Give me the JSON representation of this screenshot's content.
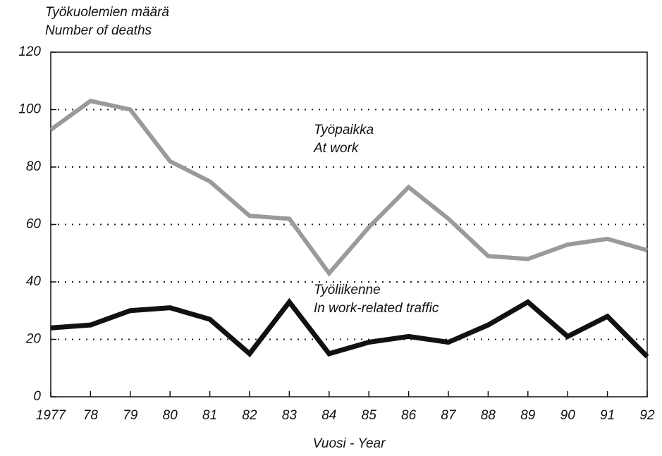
{
  "chart_data": {
    "type": "line",
    "ylabel": [
      "Työkuolemien määrä",
      "Number of deaths"
    ],
    "xlabel": "Vuosi - Year",
    "categories": [
      "1977",
      "78",
      "79",
      "80",
      "81",
      "82",
      "83",
      "84",
      "85",
      "86",
      "87",
      "88",
      "89",
      "90",
      "91",
      "92"
    ],
    "series": [
      {
        "name": "Työpaikka",
        "name_en": "At work",
        "color": "#9a9a9a",
        "values": [
          93,
          103,
          100,
          82,
          75,
          63,
          62,
          43,
          59,
          73,
          62,
          49,
          48,
          53,
          55,
          51
        ]
      },
      {
        "name": "Työliikenne",
        "name_en": "In work-related traffic",
        "color": "#111111",
        "values": [
          24,
          25,
          30,
          31,
          27,
          15,
          33,
          15,
          19,
          21,
          19,
          25,
          33,
          21,
          28,
          14
        ]
      }
    ],
    "ylim": [
      0,
      120
    ],
    "yticks": [
      0,
      20,
      40,
      60,
      80,
      100,
      120
    ],
    "grid": true
  }
}
